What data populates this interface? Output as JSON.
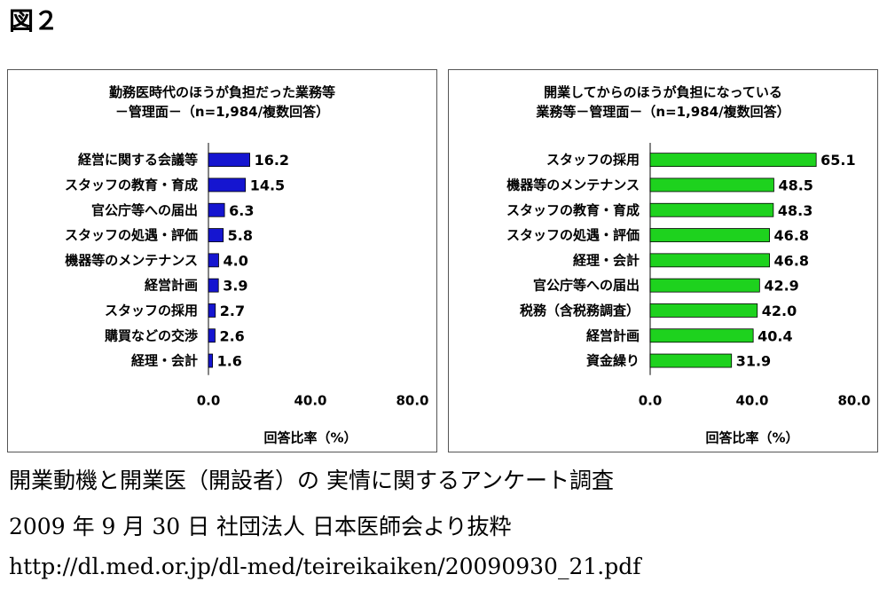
{
  "figure_label": "図２",
  "chart_data": [
    {
      "type": "bar",
      "orientation": "horizontal",
      "title_line1": "勤務医時代のほうが負担だった業務等",
      "title_line2": "－管理面－（n=1,984/複数回答）",
      "categories": [
        "経営に関する会議等",
        "スタッフの教育・育成",
        "官公庁等への届出",
        "スタッフの処遇・評価",
        "機器等のメンテナンス",
        "経営計画",
        "スタッフの採用",
        "購買などの交渉",
        "経理・会計"
      ],
      "values": [
        16.2,
        14.5,
        6.3,
        5.8,
        4.0,
        3.9,
        2.7,
        2.6,
        1.6
      ],
      "value_labels": [
        "16.2",
        "14.5",
        "6.3",
        "5.8",
        "4.0",
        "3.9",
        "2.7",
        "2.6",
        "1.6"
      ],
      "xlim": [
        0,
        80
      ],
      "ticks": [
        "0.0",
        "40.0",
        "80.0"
      ],
      "xlabel": "回答比率（%）",
      "bar_color": "#1515d0"
    },
    {
      "type": "bar",
      "orientation": "horizontal",
      "title_line1": "開業してからのほうが負担になっている",
      "title_line2": "業務等－管理面－（n=1,984/複数回答）",
      "categories": [
        "スタッフの採用",
        "機器等のメンテナンス",
        "スタッフの教育・育成",
        "スタッフの処遇・評価",
        "経理・会計",
        "官公庁等への届出",
        "税務（含税務調査）",
        "経営計画",
        "資金繰り"
      ],
      "values": [
        65.1,
        48.5,
        48.3,
        46.8,
        46.8,
        42.9,
        42.0,
        40.4,
        31.9
      ],
      "value_labels": [
        "65.1",
        "48.5",
        "48.3",
        "46.8",
        "46.8",
        "42.9",
        "42.0",
        "40.4",
        "31.9"
      ],
      "xlim": [
        0,
        80
      ],
      "ticks": [
        "0.0",
        "40.0",
        "80.0"
      ],
      "xlabel": "回答比率（%）",
      "bar_color": "#1ed21e"
    }
  ],
  "caption": {
    "line1": "開業動機と開業医（開設者）の 実情に関するアンケート調査",
    "line2": "2009 年 9 月 30 日 社団法人 日本医師会より抜粋",
    "line3": "http://dl.med.or.jp/dl-med/teireikaiken/20090930_21.pdf"
  }
}
